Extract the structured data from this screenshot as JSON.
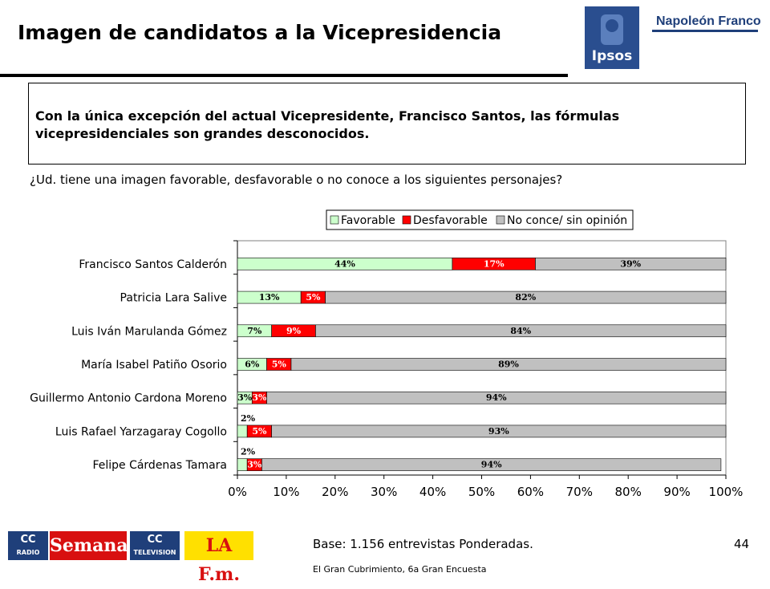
{
  "slide": {
    "title": "Imagen de candidatos a la Vicepresidencia",
    "brand": "Napoleón Franco",
    "brand_logo": "Ipsos",
    "summary": "Con la única excepción del actual Vicepresidente, Francisco Santos, las fórmulas vicepresidenciales son grandes desconocidos.",
    "question": "¿Ud. tiene una imagen favorable, desfavorable o no conoce a los siguientes personajes?",
    "base": "Base: 1.156 entrevistas Ponderadas.",
    "page_number": "44",
    "source": "El Gran Cubrimiento, 6a Gran Encuesta"
  },
  "partner_logos": [
    {
      "name": "RADIO",
      "mark": "CC"
    },
    {
      "name": "Semana"
    },
    {
      "name": "TELEVISION",
      "mark": "CC"
    },
    {
      "name": "LA F.m."
    }
  ],
  "chart_data": {
    "type": "bar",
    "orientation": "horizontal",
    "stacked": true,
    "categories": [
      "Francisco Santos Calderón",
      "Patricia Lara Salive",
      "Luis Iván Marulanda Gómez",
      "María Isabel Patiño Osorio",
      "Guillermo Antonio Cardona Moreno",
      "Luis Rafael Yarzagaray Cogollo",
      "Felipe Cárdenas Tamara"
    ],
    "series": [
      {
        "name": "Favorable",
        "color": "#ccffcc",
        "label_color": "#000000",
        "values": [
          44,
          13,
          7,
          6,
          3,
          2,
          2
        ]
      },
      {
        "name": "Desfavorable",
        "color": "#ff0000",
        "label_color": "#ffffff",
        "values": [
          17,
          5,
          9,
          5,
          3,
          5,
          3
        ]
      },
      {
        "name": "No conce/ sin opinión",
        "color": "#c0c0c0",
        "label_color": "#000000",
        "values": [
          39,
          82,
          84,
          89,
          94,
          93,
          94
        ]
      }
    ],
    "x_ticks": [
      "0%",
      "10%",
      "20%",
      "30%",
      "40%",
      "50%",
      "60%",
      "70%",
      "80%",
      "90%",
      "100%"
    ],
    "xlim": [
      0,
      100
    ],
    "grid": false,
    "legend_position": "top"
  }
}
